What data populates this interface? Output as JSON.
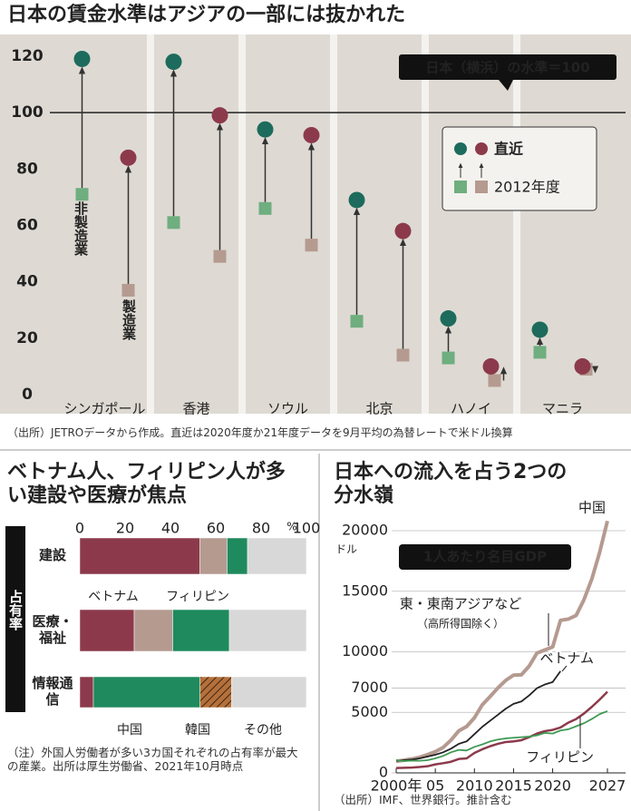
{
  "chart_data": [
    {
      "type": "arrow-dot",
      "title": "日本の賃金水準はアジアの一部には抜かれた",
      "categories": [
        "シンガポール",
        "香港",
        "ソウル",
        "北京",
        "ハノイ",
        "マニラ"
      ],
      "series": [
        {
          "name": "非製造業",
          "color_recent": "#1d6b5c",
          "color_base": "#6fae7f",
          "start": [
            71,
            61,
            66,
            26,
            13,
            15
          ],
          "end": [
            119,
            118,
            94,
            69,
            27,
            23
          ]
        },
        {
          "name": "製造業",
          "color_recent": "#8c3a4b",
          "color_base": "#b59a90",
          "start": [
            37,
            49,
            53,
            14,
            5,
            9
          ],
          "end": [
            84,
            99,
            92,
            58,
            10,
            10
          ]
        }
      ],
      "legend": {
        "recent": "直近",
        "base": "2012年度"
      },
      "reference_line": {
        "value": 100,
        "label": "日本（横浜）の水準＝100"
      },
      "ylim": [
        0,
        128
      ],
      "yticks": [
        0,
        20,
        40,
        60,
        80,
        100,
        120
      ],
      "source": "（出所）JETROデータから作成。直近は2020年度か21年度データを9月平均の為替レートで米ドル換算"
    },
    {
      "type": "stacked-barh",
      "title": "ベトナム人、フィリピン人が多い建設や医療が焦点",
      "categories": [
        "建設",
        "医療・福祉",
        "情報通信"
      ],
      "ylabel": "占有率",
      "xlabel": "%",
      "xlim": [
        0,
        100
      ],
      "xticks": [
        0,
        20,
        40,
        60,
        80,
        100
      ],
      "series": [
        {
          "name": "ベトナム",
          "color": "#8c3a4b",
          "values": [
            53,
            24,
            6
          ]
        },
        {
          "name": "フィリピン",
          "color": "#b59a90",
          "values": [
            12,
            17,
            0
          ]
        },
        {
          "name": "中国",
          "color": "#1f8a5e",
          "values": [
            9,
            25,
            47
          ]
        },
        {
          "name": "韓国",
          "color": "#b5703a",
          "pattern": "hatched",
          "values": [
            0,
            0,
            14
          ]
        },
        {
          "name": "その他",
          "color": "#d8d8d8",
          "values": [
            26,
            34,
            33
          ]
        }
      ],
      "note": "（注）外国人労働者が多い3カ国それぞれの占有率が最大の産業。出所は厚生労働省、2021年10月時点"
    },
    {
      "type": "line",
      "title": "日本への流入を占う2つの分水嶺",
      "subtitle": "1人あたり名目GDP",
      "ylabel": "ドル",
      "x": [
        2000,
        2001,
        2002,
        2003,
        2004,
        2005,
        2006,
        2007,
        2008,
        2009,
        2010,
        2011,
        2012,
        2013,
        2014,
        2015,
        2016,
        2017,
        2018,
        2019,
        2020,
        2021,
        2022,
        2023,
        2024,
        2025,
        2026,
        2027
      ],
      "series": [
        {
          "name": "中国",
          "color": "#b59a90",
          "width": 4,
          "values": [
            960,
            1050,
            1150,
            1290,
            1510,
            1750,
            2100,
            2700,
            3470,
            3830,
            4550,
            5620,
            6300,
            7020,
            7640,
            8070,
            8100,
            8820,
            9900,
            10150,
            10400,
            12600,
            12700,
            13000,
            14300,
            16000,
            18200,
            20800
          ]
        },
        {
          "name": "東・東南アジアなど",
          "name_note": "（高所得国除く）",
          "color": "#222222",
          "width": 1.8,
          "values": [
            1000,
            1050,
            1100,
            1200,
            1350,
            1500,
            1700,
            2000,
            2400,
            2600,
            3200,
            3800,
            4300,
            4800,
            5300,
            5700,
            5900,
            6400,
            7000,
            7300,
            7500,
            8400,
            null,
            null,
            null,
            null,
            null,
            null
          ]
        },
        {
          "name": "ベトナム",
          "color": "#8c3a4b",
          "width": 2.5,
          "values": [
            400,
            420,
            440,
            490,
            550,
            700,
            800,
            920,
            1150,
            1200,
            1650,
            1950,
            2200,
            2400,
            2550,
            2600,
            2700,
            2950,
            3250,
            3450,
            3550,
            3750,
            4150,
            4450,
            4900,
            5450,
            6050,
            6700
          ]
        },
        {
          "name": "フィリピン",
          "color": "#3f9a55",
          "width": 1.8,
          "values": [
            1050,
            980,
            1010,
            1000,
            1050,
            1200,
            1400,
            1700,
            1900,
            1850,
            2150,
            2350,
            2600,
            2750,
            2850,
            2900,
            2950,
            3000,
            3100,
            3300,
            3250,
            3500,
            3600,
            3850,
            4100,
            4450,
            4850,
            5100
          ]
        }
      ],
      "xlim": [
        2000,
        2027
      ],
      "xticks": [
        {
          "value": 2000,
          "label": "2000年"
        },
        {
          "value": 2005,
          "label": "05"
        },
        2010,
        2015,
        2020,
        2027
      ],
      "ylim": [
        0,
        21000
      ],
      "yticks": [
        0,
        5000,
        7000,
        10000,
        15000,
        20000
      ],
      "source": "（出所）IMF、世界銀行。推計含む"
    }
  ]
}
